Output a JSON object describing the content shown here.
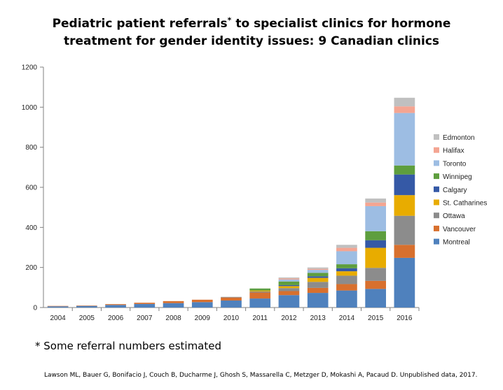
{
  "title": {
    "line1_main": "Pediatric patient referrals",
    "line1_mark": "*",
    "line1_rest": " to specialist clinics for hormone",
    "line2": "treatment for gender identity issues: 9 Canadian clinics"
  },
  "footnote": "* Some referral numbers estimated",
  "citation": "Lawson ML, Bauer G, Bonifacio J, Couch B, Ducharme J, Ghosh S, Massarella C, Metzger D, Mokashi A, Pacaud D. Unpublished data, 2017.",
  "chart_data": {
    "type": "bar",
    "stacked": true,
    "ylim": [
      0,
      1200
    ],
    "yticks": [
      0,
      200,
      400,
      600,
      800,
      1000,
      1200
    ],
    "categories": [
      "2004",
      "2005",
      "2006",
      "2007",
      "2008",
      "2009",
      "2010",
      "2011",
      "2012",
      "2013",
      "2014",
      "2015",
      "2016"
    ],
    "legend_position": "right",
    "series": [
      {
        "name": "Montreal",
        "color": "#4F81BD",
        "values": [
          6,
          8,
          13,
          18,
          22,
          27,
          35,
          45,
          62,
          73,
          85,
          93,
          248
        ]
      },
      {
        "name": "Vancouver",
        "color": "#D8702E",
        "values": [
          2,
          2,
          4,
          6,
          10,
          12,
          15,
          30,
          20,
          25,
          32,
          40,
          65
        ]
      },
      {
        "name": "Ottawa",
        "color": "#8C8C8C",
        "values": [
          0,
          0,
          0,
          0,
          0,
          0,
          3,
          5,
          15,
          30,
          42,
          65,
          145
        ]
      },
      {
        "name": "St. Catharines",
        "color": "#E8AC00",
        "values": [
          0,
          0,
          0,
          0,
          0,
          0,
          0,
          5,
          10,
          20,
          22,
          100,
          103
        ]
      },
      {
        "name": "Calgary",
        "color": "#3559A6",
        "values": [
          0,
          0,
          0,
          0,
          0,
          0,
          0,
          0,
          5,
          8,
          15,
          38,
          103
        ]
      },
      {
        "name": "Winnipeg",
        "color": "#5E9E3E",
        "values": [
          0,
          0,
          0,
          0,
          0,
          0,
          0,
          10,
          18,
          17,
          20,
          45,
          45
        ]
      },
      {
        "name": "Toronto",
        "color": "#9DBDE3",
        "values": [
          0,
          0,
          0,
          0,
          0,
          0,
          0,
          0,
          10,
          15,
          65,
          125,
          262
        ]
      },
      {
        "name": "Halifax",
        "color": "#F4A592",
        "values": [
          0,
          0,
          0,
          0,
          0,
          0,
          0,
          0,
          5,
          5,
          17,
          18,
          33
        ]
      },
      {
        "name": "Edmonton",
        "color": "#C0C0C0",
        "values": [
          0,
          0,
          0,
          0,
          0,
          0,
          0,
          0,
          5,
          7,
          15,
          20,
          43
        ]
      }
    ]
  }
}
